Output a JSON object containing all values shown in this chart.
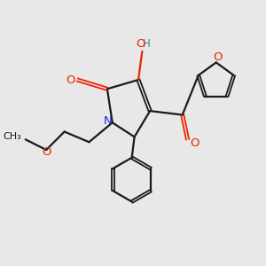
{
  "background_color": "#e8e8e8",
  "bond_color": "#1a1a1a",
  "oxygen_color": "#ee2200",
  "nitrogen_color": "#2222dd",
  "hydroxyl_color": "#4a8888",
  "figsize": [
    3.0,
    3.0
  ],
  "dpi": 100,
  "xlim": [
    0,
    10
  ],
  "ylim": [
    0,
    10
  ]
}
